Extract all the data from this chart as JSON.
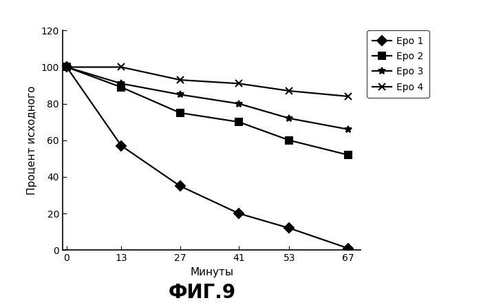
{
  "x": [
    0,
    13,
    27,
    41,
    53,
    67
  ],
  "series": {
    "Epo 1": [
      100,
      57,
      35,
      20,
      12,
      1
    ],
    "Epo 2": [
      100,
      89,
      75,
      70,
      60,
      52
    ],
    "Epo 3": [
      100,
      91,
      85,
      80,
      72,
      66
    ],
    "Epo 4": [
      100,
      100,
      93,
      91,
      87,
      84
    ]
  },
  "markers": {
    "Epo 1": "D",
    "Epo 2": "s",
    "Epo 3": "*",
    "Epo 4": "x"
  },
  "marker_fills": {
    "Epo 1": "black",
    "Epo 2": "black",
    "Epo 3": "black",
    "Epo 4": "none"
  },
  "xlabel": "Минуты",
  "ylabel": "Процент исходного",
  "title": "ФИГ.9",
  "xlim": [
    -1,
    70
  ],
  "ylim": [
    0,
    120
  ],
  "yticks": [
    0,
    20,
    40,
    60,
    80,
    100,
    120
  ],
  "xticks": [
    0,
    13,
    27,
    41,
    53,
    67
  ],
  "marker_size": 7,
  "line_width": 1.6,
  "background_color": "#ffffff",
  "legend_labels": [
    "Epo 1",
    "Epo 2",
    "Epo 3",
    "Epo 4"
  ]
}
